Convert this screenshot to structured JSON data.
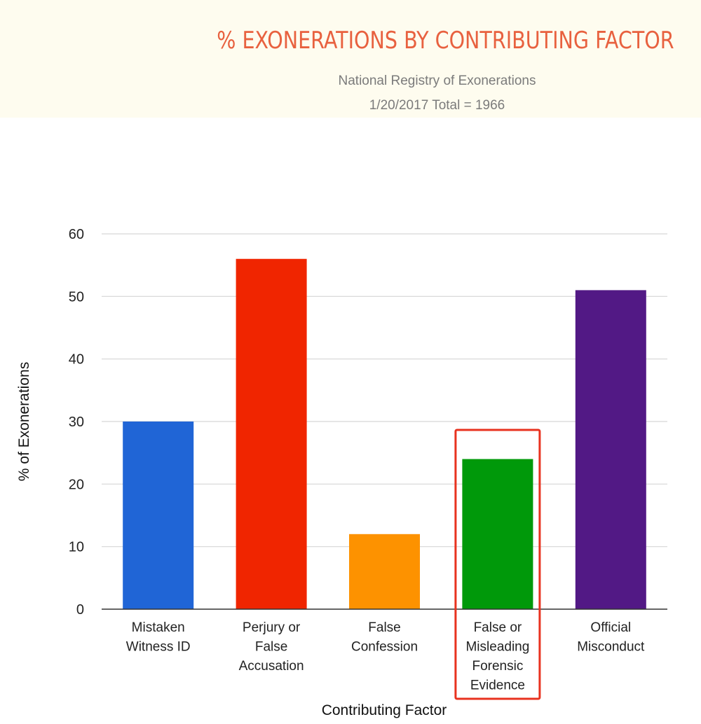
{
  "header": {
    "title": "% EXONERATIONS BY CONTRIBUTING FACTOR",
    "subtitle_line1": "National Registry of Exonerations",
    "subtitle_line2": "1/20/2017 Total = 1966"
  },
  "colors": {
    "header_bg": "#fefcef",
    "title": "#e8613f",
    "subtitle": "#7b7b7b",
    "highlight_box": "#e8321f"
  },
  "chart_data": {
    "type": "bar",
    "title": "% EXONERATIONS BY CONTRIBUTING FACTOR",
    "xlabel": "Contributing Factor",
    "ylabel": "% of Exonerations",
    "ylim": [
      0,
      60
    ],
    "yticks": [
      0,
      10,
      20,
      30,
      40,
      50,
      60
    ],
    "grid": true,
    "categories": [
      [
        "Mistaken",
        "Witness ID"
      ],
      [
        "Perjury or",
        "False",
        "Accusation"
      ],
      [
        "False",
        "Confession"
      ],
      [
        "False or",
        "Misleading",
        "Forensic",
        "Evidence"
      ],
      [
        "Official",
        "Misconduct"
      ]
    ],
    "values": [
      30,
      56,
      12,
      24,
      51
    ],
    "bar_colors": [
      "#2065d6",
      "#f02500",
      "#fd9200",
      "#00990a",
      "#521985"
    ],
    "highlighted_category_index": 3
  }
}
